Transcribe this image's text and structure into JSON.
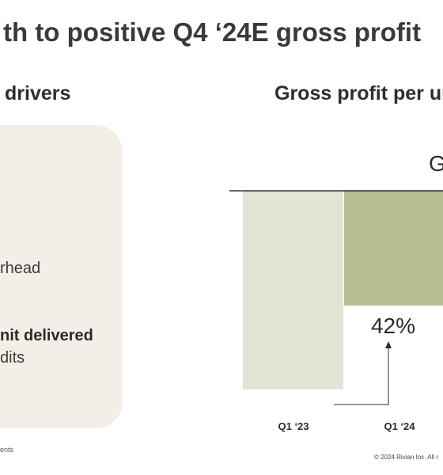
{
  "slide": {
    "title": "th to positive Q4 ‘24E gross profit",
    "left_heading": "drivers",
    "right_heading": "Gross profit per ur",
    "footnote": "ents",
    "copyright": "© 2024 Rivian Inc. All r"
  },
  "drivers_panel": {
    "lines": [
      {
        "text": "rhead",
        "bold": false
      },
      {
        "text": "nit delivered",
        "bold": true
      },
      {
        "text": "dits",
        "bold": false
      }
    ]
  },
  "chart_data": {
    "type": "bar",
    "categories": [
      "Q1 ‘23",
      "Q1 ‘24"
    ],
    "x_tick_labels": [
      "Q1 ‘23",
      "Q1 ‘24"
    ],
    "bar_colors": [
      "#e2e5d5",
      "#b7bd8f"
    ],
    "baseline_color": "#333333",
    "annotation": {
      "text": "42%",
      "between": [
        "Q1 ‘23",
        "Q1 ‘24"
      ]
    },
    "partial_label": "G"
  }
}
